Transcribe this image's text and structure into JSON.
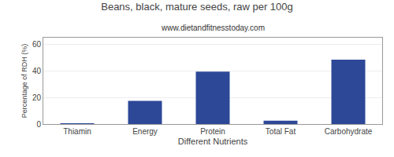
{
  "chart_data": {
    "type": "bar",
    "title": "Beans, black, mature seeds, raw per 100g",
    "subtitle": "www.dietandfitnesstoday.com",
    "xlabel": "Different Nutrients",
    "ylabel": "Percentage of RDH (%)",
    "categories": [
      "Thiamin",
      "Energy",
      "Protein",
      "Total Fat",
      "Carbohydrate"
    ],
    "values": [
      0.4,
      17.5,
      39.5,
      2.5,
      48.5
    ],
    "color": "#2E4898",
    "ylim": [
      0,
      65
    ],
    "yticks": [
      0,
      20,
      40,
      60
    ],
    "grid": true
  }
}
